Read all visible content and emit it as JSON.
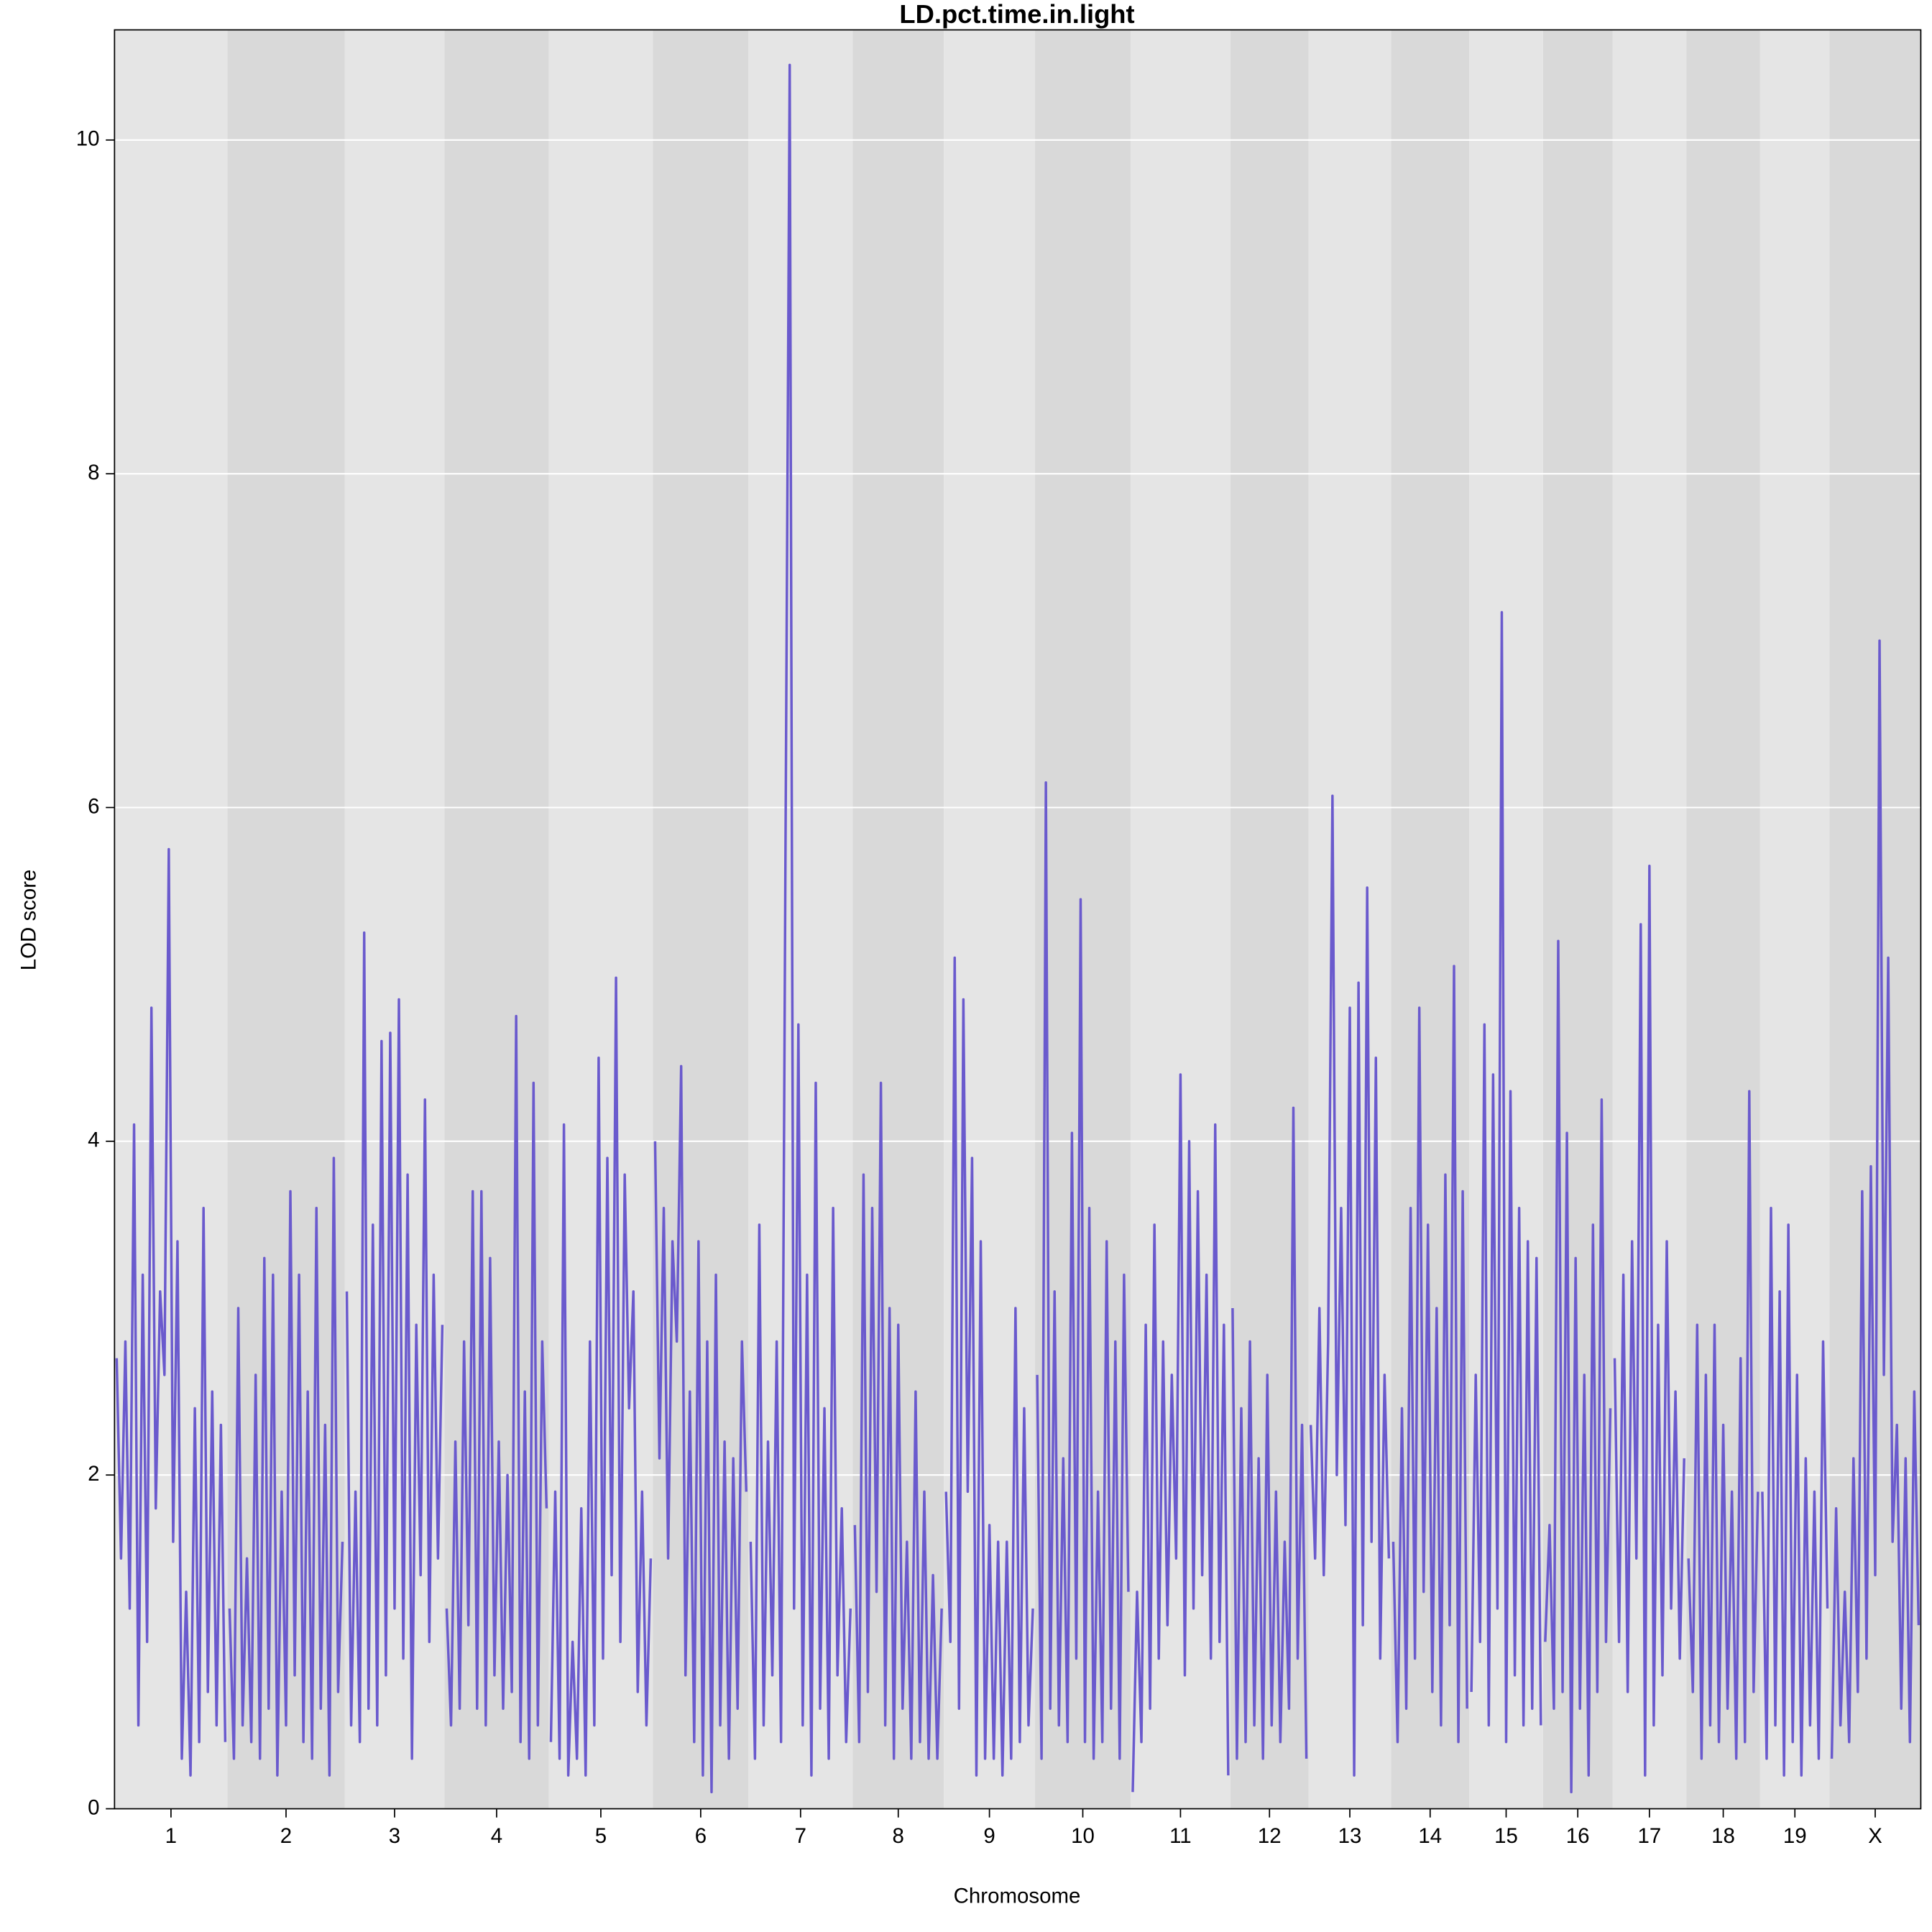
{
  "chart_data": {
    "type": "line",
    "title": "LD.pct.time.in.light",
    "xlabel": "Chromosome",
    "ylabel": "LOD score",
    "color": "#6a5acd",
    "grid": true,
    "ylim": [
      0,
      10.66
    ],
    "yticks": [
      0,
      2,
      4,
      6,
      8,
      10
    ],
    "series": [
      {
        "name": "1",
        "values": [
          2.7,
          1.5,
          2.8,
          1.2,
          4.1,
          0.5,
          3.2,
          1.0,
          4.8,
          1.8,
          3.1,
          2.6,
          5.75,
          1.6,
          3.4,
          0.3,
          1.3,
          0.2,
          2.4,
          0.4,
          3.6,
          0.7,
          2.5,
          0.5,
          2.3,
          0.4
        ]
      },
      {
        "name": "2",
        "values": [
          1.2,
          0.3,
          3.0,
          0.5,
          1.5,
          0.4,
          2.6,
          0.3,
          3.3,
          0.6,
          3.2,
          0.2,
          1.9,
          0.5,
          3.7,
          0.8,
          3.2,
          0.4,
          2.5,
          0.3,
          3.6,
          0.6,
          2.3,
          0.2,
          3.9,
          0.7,
          1.6
        ]
      },
      {
        "name": "3",
        "values": [
          3.1,
          0.5,
          1.9,
          0.4,
          5.25,
          0.6,
          3.5,
          0.5,
          4.6,
          0.8,
          4.65,
          1.2,
          4.85,
          0.9,
          3.8,
          0.3,
          2.9,
          1.4,
          4.25,
          1.0,
          3.2,
          1.5,
          2.9
        ]
      },
      {
        "name": "4",
        "values": [
          1.2,
          0.5,
          2.2,
          0.6,
          2.8,
          1.1,
          3.7,
          0.6,
          3.7,
          0.5,
          3.3,
          0.8,
          2.2,
          0.6,
          2.0,
          0.7,
          4.75,
          0.4,
          2.5,
          0.3,
          4.35,
          0.5,
          2.8,
          1.8
        ]
      },
      {
        "name": "5",
        "values": [
          0.4,
          1.9,
          0.3,
          4.1,
          0.2,
          1.0,
          0.3,
          1.8,
          0.2,
          2.8,
          0.5,
          4.5,
          0.9,
          3.9,
          1.4,
          4.98,
          1.0,
          3.8,
          2.4,
          3.1,
          0.7,
          1.9,
          0.5,
          1.5
        ]
      },
      {
        "name": "6",
        "values": [
          4.0,
          2.1,
          3.6,
          1.5,
          3.4,
          2.8,
          4.45,
          0.8,
          2.5,
          0.4,
          3.4,
          0.2,
          2.8,
          0.1,
          3.2,
          0.5,
          2.2,
          0.3,
          2.1,
          0.6,
          2.8,
          1.9
        ]
      },
      {
        "name": "7",
        "values": [
          1.6,
          0.3,
          3.5,
          0.5,
          2.2,
          0.8,
          2.8,
          0.4,
          5.6,
          10.45,
          1.2,
          4.7,
          0.5,
          3.2,
          0.2,
          4.35,
          0.6,
          2.4,
          0.3,
          3.6,
          0.8,
          1.8,
          0.4,
          1.2
        ]
      },
      {
        "name": "8",
        "values": [
          1.7,
          0.4,
          3.8,
          0.7,
          3.6,
          1.3,
          4.35,
          0.5,
          3.0,
          0.3,
          2.9,
          0.6,
          1.6,
          0.3,
          2.5,
          0.4,
          1.9,
          0.3,
          1.4,
          0.3,
          1.2
        ]
      },
      {
        "name": "9",
        "values": [
          1.9,
          1.0,
          5.1,
          0.6,
          4.85,
          1.9,
          3.9,
          0.2,
          3.4,
          0.3,
          1.7,
          0.3,
          1.6,
          0.2,
          1.6,
          0.3,
          3.0,
          0.4,
          2.4,
          0.5,
          1.2
        ]
      },
      {
        "name": "10",
        "values": [
          2.6,
          0.3,
          6.15,
          0.6,
          3.1,
          0.5,
          2.1,
          0.4,
          4.05,
          0.9,
          5.45,
          0.4,
          3.6,
          0.3,
          1.9,
          0.4,
          3.4,
          0.6,
          2.8,
          0.3,
          3.2,
          1.3
        ]
      },
      {
        "name": "11",
        "values": [
          0.1,
          1.3,
          0.4,
          2.9,
          0.6,
          3.5,
          0.9,
          2.8,
          1.1,
          2.6,
          1.5,
          4.4,
          0.8,
          4.0,
          1.2,
          3.7,
          1.4,
          3.2,
          0.9,
          4.1,
          1.0,
          2.9,
          0.2
        ]
      },
      {
        "name": "12",
        "values": [
          3.0,
          0.3,
          2.4,
          0.4,
          2.8,
          0.5,
          2.1,
          0.3,
          2.6,
          0.5,
          1.9,
          0.4,
          1.6,
          0.6,
          4.2,
          0.9,
          2.3,
          0.3
        ]
      },
      {
        "name": "13",
        "values": [
          2.3,
          1.5,
          3.0,
          1.4,
          2.8,
          6.07,
          2.0,
          3.6,
          1.7,
          4.8,
          0.2,
          4.95,
          1.1,
          5.52,
          1.6,
          4.5,
          0.9,
          2.6,
          1.5
        ]
      },
      {
        "name": "14",
        "values": [
          1.6,
          0.4,
          2.4,
          0.6,
          3.6,
          0.9,
          4.8,
          1.3,
          3.5,
          0.7,
          3.0,
          0.5,
          3.8,
          1.1,
          5.05,
          0.4,
          3.7,
          0.6
        ]
      },
      {
        "name": "15",
        "values": [
          0.7,
          2.6,
          1.0,
          4.7,
          0.5,
          4.4,
          1.2,
          7.17,
          0.4,
          4.3,
          0.8,
          3.6,
          0.5,
          3.4,
          0.6,
          3.3,
          0.5
        ]
      },
      {
        "name": "16",
        "values": [
          1.0,
          1.7,
          0.6,
          5.2,
          0.7,
          4.05,
          0.1,
          3.3,
          0.6,
          2.6,
          0.2,
          3.5,
          0.7,
          4.25,
          1.0,
          2.4
        ]
      },
      {
        "name": "17",
        "values": [
          2.7,
          1.0,
          3.2,
          0.7,
          3.4,
          1.5,
          5.3,
          0.2,
          5.65,
          0.5,
          2.9,
          0.8,
          3.4,
          1.2,
          2.5,
          0.9,
          2.1
        ]
      },
      {
        "name": "18",
        "values": [
          1.5,
          0.7,
          2.9,
          0.3,
          2.6,
          0.5,
          2.9,
          0.4,
          2.3,
          0.6,
          1.9,
          0.3,
          2.7,
          0.4,
          4.3,
          0.7,
          1.9
        ]
      },
      {
        "name": "19",
        "values": [
          1.9,
          0.3,
          3.6,
          0.5,
          3.1,
          0.2,
          3.5,
          0.4,
          2.6,
          0.2,
          2.1,
          0.5,
          1.9,
          0.3,
          2.8,
          1.2
        ]
      },
      {
        "name": "X",
        "values": [
          0.3,
          1.8,
          0.5,
          1.3,
          0.4,
          2.1,
          0.7,
          3.7,
          0.9,
          3.85,
          1.4,
          7.0,
          2.6,
          5.1,
          1.6,
          2.3,
          0.6,
          2.1,
          0.4,
          2.5,
          1.1
        ]
      }
    ]
  }
}
